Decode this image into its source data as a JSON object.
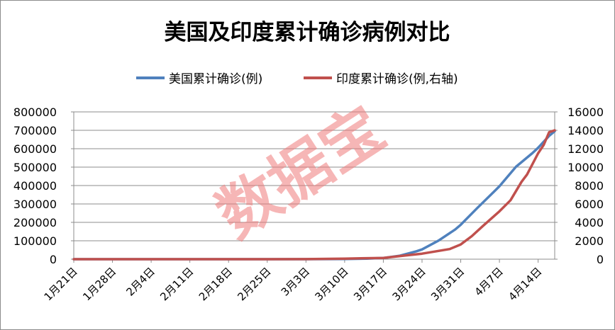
{
  "chart_data": {
    "type": "line",
    "title": "美国及印度累计确诊病例对比",
    "watermark": "数据宝",
    "categories": [
      "1月21日",
      "1月28日",
      "2月4日",
      "2月11日",
      "2月18日",
      "2月25日",
      "3月3日",
      "3月10日",
      "3月17日",
      "3月24日",
      "3月31日",
      "4月7日",
      "4月14日"
    ],
    "x_days": [
      0,
      7,
      14,
      21,
      28,
      35,
      42,
      49,
      56,
      63,
      70,
      77,
      84
    ],
    "y_left": {
      "min": 0,
      "max": 800000,
      "ticks": [
        "0",
        "100000",
        "200000",
        "300000",
        "400000",
        "500000",
        "600000",
        "700000",
        "800000"
      ]
    },
    "y_right": {
      "min": 0,
      "max": 16000,
      "ticks": [
        "0",
        "2000",
        "4000",
        "6000",
        "8000",
        "10000",
        "12000",
        "14000",
        "16000"
      ]
    },
    "legend_position": "top",
    "grid": true,
    "series": [
      {
        "name": "美国累计确诊(例)",
        "axis": "left",
        "color": "#4f81bd",
        "points": [
          [
            0,
            1
          ],
          [
            7,
            5
          ],
          [
            14,
            11
          ],
          [
            21,
            13
          ],
          [
            28,
            15
          ],
          [
            35,
            57
          ],
          [
            42,
            103
          ],
          [
            49,
            959
          ],
          [
            53,
            3000
          ],
          [
            56,
            6400
          ],
          [
            59,
            19000
          ],
          [
            62,
            43000
          ],
          [
            63,
            53000
          ],
          [
            66,
            101000
          ],
          [
            69,
            161000
          ],
          [
            70,
            187000
          ],
          [
            73,
            278000
          ],
          [
            76,
            366000
          ],
          [
            77,
            396000
          ],
          [
            80,
            502000
          ],
          [
            83,
            577000
          ],
          [
            84,
            605000
          ],
          [
            86,
            670000
          ],
          [
            87,
            695000
          ]
        ]
      },
      {
        "name": "印度确诊(例,右轴)",
        "axis": "right",
        "legend_label": "印度累计确诊(例,右轴)",
        "color": "#c0504d",
        "points": [
          [
            0,
            0
          ],
          [
            9,
            1
          ],
          [
            14,
            3
          ],
          [
            21,
            3
          ],
          [
            28,
            3
          ],
          [
            35,
            3
          ],
          [
            42,
            6
          ],
          [
            49,
            60
          ],
          [
            56,
            140
          ],
          [
            60,
            400
          ],
          [
            63,
            600
          ],
          [
            66,
            900
          ],
          [
            68,
            1100
          ],
          [
            70,
            1600
          ],
          [
            72,
            2500
          ],
          [
            74,
            3600
          ],
          [
            77,
            5200
          ],
          [
            79,
            6400
          ],
          [
            81,
            8400
          ],
          [
            82,
            9200
          ],
          [
            84,
            11500
          ],
          [
            85,
            12400
          ],
          [
            86,
            13800
          ],
          [
            87,
            14000
          ]
        ]
      }
    ]
  }
}
